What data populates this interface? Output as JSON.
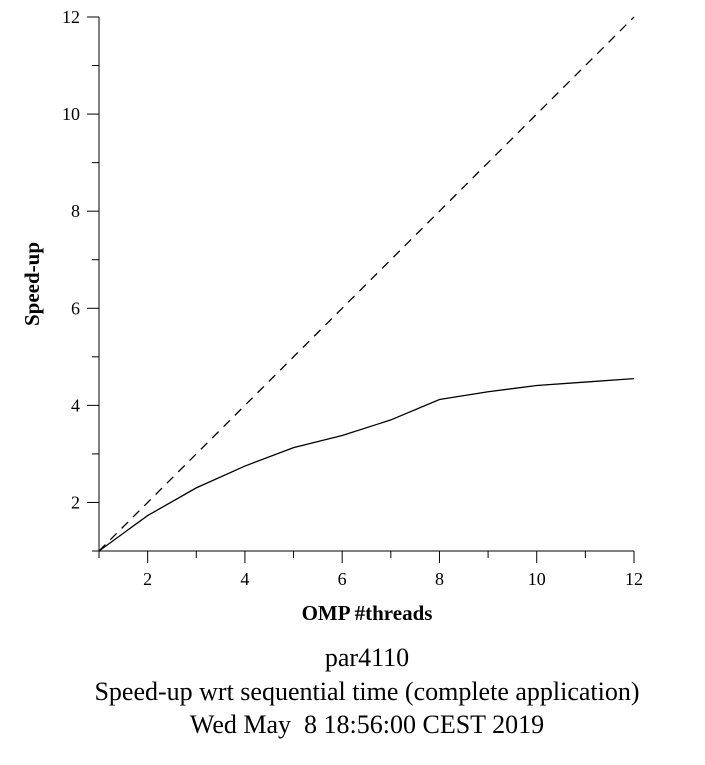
{
  "chart_data": {
    "type": "line",
    "title": "",
    "xlabel": "OMP #threads",
    "ylabel": "Speed-up",
    "xlim": [
      1,
      12
    ],
    "ylim": [
      1,
      12
    ],
    "x_ticks": [
      2,
      4,
      6,
      8,
      10,
      12
    ],
    "y_ticks": [
      2,
      4,
      6,
      8,
      10,
      12
    ],
    "grid": false,
    "series": [
      {
        "style": "solid",
        "x": [
          1,
          2,
          3,
          4,
          5,
          6,
          7,
          8,
          9,
          10,
          11,
          12
        ],
        "y": [
          1.0,
          1.73,
          2.3,
          2.75,
          3.13,
          3.38,
          3.7,
          4.12,
          4.28,
          4.41,
          4.48,
          4.55
        ]
      },
      {
        "style": "dashed",
        "x": [
          1,
          12
        ],
        "y": [
          1,
          12
        ]
      }
    ]
  },
  "captions": [
    "par4110",
    "Speed-up wrt sequential time (complete application)",
    "Wed May  8 18:56:00 CEST 2019"
  ]
}
